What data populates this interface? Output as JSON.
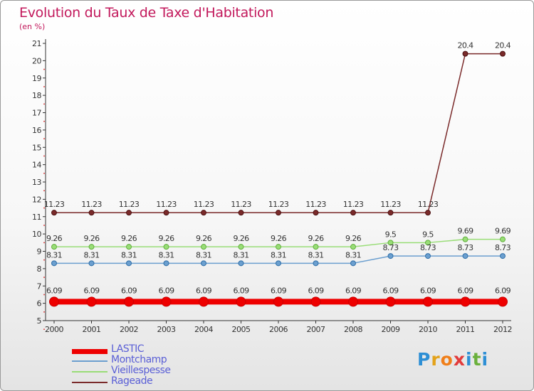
{
  "title": "Evolution du Taux de Taxe d'Habitation",
  "unit_label": "(en %)",
  "logo_text": "Proxiti",
  "chart_data": {
    "type": "line",
    "title": "Evolution du Taux de Taxe d'Habitation",
    "ylabel": "(en %)",
    "xlabel": "",
    "ylim": [
      5,
      21
    ],
    "yticks": [
      5,
      6,
      7,
      8,
      9,
      10,
      11,
      12,
      13,
      14,
      15,
      16,
      17,
      18,
      19,
      20,
      21
    ],
    "categories": [
      "2000",
      "2001",
      "2002",
      "2003",
      "2004",
      "2005",
      "2006",
      "2007",
      "2008",
      "2009",
      "2010",
      "2011",
      "2012"
    ],
    "series": [
      {
        "name": "LASTIC",
        "color": "#ee0000",
        "values": [
          6.09,
          6.09,
          6.09,
          6.09,
          6.09,
          6.09,
          6.09,
          6.09,
          6.09,
          6.09,
          6.09,
          6.09,
          6.09
        ],
        "labels": [
          "6.09",
          "6.09",
          "6.09",
          "6.09",
          "6.09",
          "6.09",
          "6.09",
          "6.09",
          "6.09",
          "6.09",
          "6.09",
          "6.09",
          "6.09"
        ]
      },
      {
        "name": "Montchamp",
        "color": "#6b9fcf",
        "values": [
          8.31,
          8.31,
          8.31,
          8.31,
          8.31,
          8.31,
          8.31,
          8.31,
          8.31,
          8.73,
          8.73,
          8.73,
          8.73
        ],
        "labels": [
          "8.31",
          "8.31",
          "8.31",
          "8.31",
          "8.31",
          "8.31",
          "8.31",
          "8.31",
          "8.31",
          "8.73",
          "8.73",
          "8.73",
          "8.73"
        ]
      },
      {
        "name": "Vieillespesse",
        "color": "#99dd77",
        "values": [
          9.26,
          9.26,
          9.26,
          9.26,
          9.26,
          9.26,
          9.26,
          9.26,
          9.26,
          9.5,
          9.5,
          9.69,
          9.69
        ],
        "labels": [
          "9.26",
          "9.26",
          "9.26",
          "9.26",
          "9.26",
          "9.26",
          "9.26",
          "9.26",
          "9.26",
          "9.5",
          "9.5",
          "9.69",
          "9.69"
        ]
      },
      {
        "name": "Rageade",
        "color": "#7a2a2a",
        "values": [
          11.23,
          11.23,
          11.23,
          11.23,
          11.23,
          11.23,
          11.23,
          11.23,
          11.23,
          11.23,
          11.23,
          20.4,
          20.4
        ],
        "labels": [
          "11.23",
          "11.23",
          "11.23",
          "11.23",
          "11.23",
          "11.23",
          "11.23",
          "11.23",
          "11.23",
          "11.23",
          "11.23",
          "20.4",
          "20.4"
        ]
      }
    ],
    "legend_position": "bottom-left",
    "grid": false
  }
}
